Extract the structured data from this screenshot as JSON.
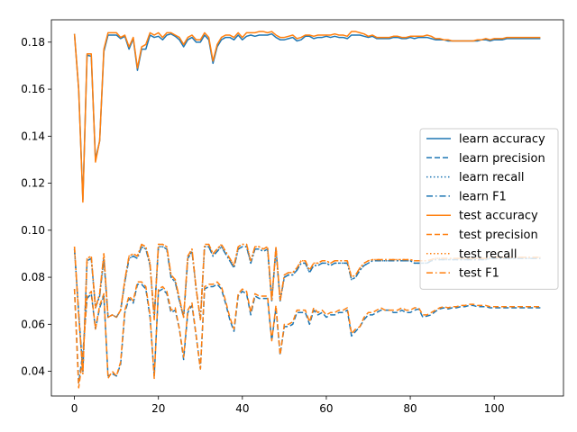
{
  "chart_data": {
    "type": "line",
    "title": "",
    "xlabel": "",
    "ylabel": "",
    "xlim": [
      -5.5,
      116.5
    ],
    "ylim": [
      0.0295,
      0.1895
    ],
    "xticks": [
      0,
      20,
      40,
      60,
      80,
      100
    ],
    "yticks": [
      0.04,
      0.06,
      0.08,
      0.1,
      0.12,
      0.14,
      0.16,
      0.18
    ],
    "ytick_labels": [
      "0.04",
      "0.06",
      "0.08",
      "0.10",
      "0.12",
      "0.14",
      "0.16",
      "0.18"
    ],
    "grid": false,
    "legend_position": "center-right",
    "colors": {
      "learn": "#1f77b4",
      "test": "#ff7f0e"
    },
    "x": [
      0,
      1,
      2,
      3,
      4,
      5,
      6,
      7,
      8,
      9,
      10,
      11,
      12,
      13,
      14,
      15,
      16,
      17,
      18,
      19,
      20,
      21,
      22,
      23,
      24,
      25,
      26,
      27,
      28,
      29,
      30,
      31,
      32,
      33,
      34,
      35,
      36,
      37,
      38,
      39,
      40,
      41,
      42,
      43,
      44,
      45,
      46,
      47,
      48,
      49,
      50,
      51,
      52,
      53,
      54,
      55,
      56,
      57,
      58,
      59,
      60,
      61,
      62,
      63,
      64,
      65,
      66,
      67,
      68,
      69,
      70,
      71,
      72,
      73,
      74,
      75,
      76,
      77,
      78,
      79,
      80,
      81,
      82,
      83,
      84,
      85,
      86,
      87,
      88,
      89,
      90,
      91,
      92,
      93,
      94,
      95,
      96,
      97,
      98,
      99,
      100,
      101,
      102,
      103,
      104,
      105,
      106,
      107,
      108,
      109,
      110,
      111
    ],
    "series": [
      {
        "name": "learn accuracy",
        "style": "solid",
        "color": "learn",
        "values": [
          0.1835,
          0.16,
          0.113,
          0.1745,
          0.174,
          0.13,
          0.138,
          0.176,
          0.183,
          0.183,
          0.183,
          0.1815,
          0.1825,
          0.177,
          0.1815,
          0.168,
          0.177,
          0.177,
          0.183,
          0.182,
          0.1825,
          0.181,
          0.183,
          0.1835,
          0.1825,
          0.181,
          0.178,
          0.181,
          0.182,
          0.18,
          0.18,
          0.183,
          0.181,
          0.171,
          0.178,
          0.181,
          0.182,
          0.182,
          0.181,
          0.183,
          0.181,
          0.1825,
          0.183,
          0.1825,
          0.183,
          0.183,
          0.183,
          0.1835,
          0.182,
          0.181,
          0.181,
          0.1815,
          0.182,
          0.1805,
          0.181,
          0.1825,
          0.1825,
          0.1815,
          0.182,
          0.182,
          0.1825,
          0.182,
          0.1825,
          0.182,
          0.182,
          0.1815,
          0.183,
          0.183,
          0.183,
          0.1825,
          0.182,
          0.1825,
          0.1815,
          0.1815,
          0.1815,
          0.1815,
          0.182,
          0.182,
          0.1815,
          0.1815,
          0.182,
          0.1815,
          0.182,
          0.182,
          0.182,
          0.1815,
          0.181,
          0.181,
          0.181,
          0.1805,
          0.1805,
          0.1805,
          0.1805,
          0.1805,
          0.1805,
          0.1805,
          0.1805,
          0.181,
          0.181,
          0.1805,
          0.181,
          0.181,
          0.181,
          0.1815,
          0.1815,
          0.1815,
          0.1815,
          0.1815,
          0.1815,
          0.1815,
          0.1815,
          0.1815
        ]
      },
      {
        "name": "learn precision",
        "style": "dashed",
        "color": "learn",
        "values": [
          0.075,
          0.035,
          0.048,
          0.071,
          0.073,
          0.058,
          0.067,
          0.072,
          0.038,
          0.039,
          0.038,
          0.043,
          0.065,
          0.071,
          0.069,
          0.077,
          0.077,
          0.075,
          0.063,
          0.038,
          0.074,
          0.075,
          0.073,
          0.065,
          0.066,
          0.058,
          0.045,
          0.065,
          0.068,
          0.055,
          0.041,
          0.075,
          0.076,
          0.076,
          0.077,
          0.075,
          0.069,
          0.062,
          0.057,
          0.072,
          0.074,
          0.073,
          0.064,
          0.072,
          0.071,
          0.071,
          0.071,
          0.053,
          0.067,
          0.047,
          0.059,
          0.059,
          0.06,
          0.065,
          0.065,
          0.065,
          0.06,
          0.066,
          0.064,
          0.065,
          0.063,
          0.064,
          0.064,
          0.065,
          0.065,
          0.066,
          0.055,
          0.057,
          0.059,
          0.062,
          0.064,
          0.064,
          0.065,
          0.066,
          0.066,
          0.066,
          0.065,
          0.065,
          0.066,
          0.065,
          0.065,
          0.066,
          0.0665,
          0.063,
          0.0635,
          0.064,
          0.0655,
          0.0665,
          0.067,
          0.0665,
          0.067,
          0.067,
          0.0675,
          0.0675,
          0.068,
          0.068,
          0.0675,
          0.0675,
          0.0675,
          0.067,
          0.067,
          0.067,
          0.067,
          0.067,
          0.067,
          0.067,
          0.067,
          0.067,
          0.067,
          0.067,
          0.067,
          0.067
        ]
      },
      {
        "name": "learn recall",
        "style": "dotted",
        "color": "learn",
        "values": [
          0.092,
          0.065,
          0.04,
          0.087,
          0.088,
          0.067,
          0.072,
          0.088,
          0.063,
          0.064,
          0.063,
          0.066,
          0.078,
          0.088,
          0.089,
          0.088,
          0.093,
          0.092,
          0.085,
          0.063,
          0.093,
          0.093,
          0.092,
          0.08,
          0.078,
          0.07,
          0.063,
          0.088,
          0.091,
          0.075,
          0.062,
          0.093,
          0.093,
          0.089,
          0.091,
          0.093,
          0.09,
          0.087,
          0.084,
          0.092,
          0.093,
          0.093,
          0.086,
          0.092,
          0.092,
          0.091,
          0.092,
          0.07,
          0.092,
          0.07,
          0.08,
          0.081,
          0.081,
          0.083,
          0.086,
          0.086,
          0.082,
          0.085,
          0.085,
          0.086,
          0.086,
          0.085,
          0.086,
          0.086,
          0.086,
          0.086,
          0.079,
          0.08,
          0.083,
          0.085,
          0.086,
          0.087,
          0.087,
          0.087,
          0.087,
          0.087,
          0.087,
          0.087,
          0.087,
          0.087,
          0.087,
          0.086,
          0.086,
          0.086,
          0.086,
          0.087,
          0.0875,
          0.0875,
          0.0875,
          0.0875,
          0.0875,
          0.0875,
          0.0875,
          0.0875,
          0.0875,
          0.0875,
          0.0875,
          0.0875,
          0.0875,
          0.088,
          0.088,
          0.088,
          0.088,
          0.088,
          0.088,
          0.088,
          0.088,
          0.088,
          0.088,
          0.088,
          0.088,
          0.088
        ]
      },
      {
        "name": "learn F1",
        "style": "dashdot",
        "color": "learn",
        "values": [
          0.092,
          0.065,
          0.04,
          0.087,
          0.088,
          0.067,
          0.072,
          0.088,
          0.063,
          0.064,
          0.063,
          0.066,
          0.078,
          0.088,
          0.089,
          0.088,
          0.093,
          0.092,
          0.085,
          0.063,
          0.093,
          0.093,
          0.092,
          0.08,
          0.078,
          0.07,
          0.063,
          0.088,
          0.091,
          0.075,
          0.062,
          0.093,
          0.093,
          0.089,
          0.091,
          0.093,
          0.09,
          0.087,
          0.084,
          0.092,
          0.093,
          0.093,
          0.086,
          0.092,
          0.092,
          0.091,
          0.092,
          0.07,
          0.092,
          0.07,
          0.08,
          0.081,
          0.081,
          0.083,
          0.086,
          0.086,
          0.082,
          0.085,
          0.085,
          0.086,
          0.086,
          0.085,
          0.086,
          0.086,
          0.086,
          0.086,
          0.079,
          0.08,
          0.083,
          0.085,
          0.086,
          0.087,
          0.087,
          0.087,
          0.087,
          0.087,
          0.087,
          0.087,
          0.087,
          0.087,
          0.087,
          0.086,
          0.086,
          0.086,
          0.086,
          0.087,
          0.0875,
          0.0875,
          0.0875,
          0.0875,
          0.0875,
          0.0875,
          0.0875,
          0.0875,
          0.0875,
          0.0875,
          0.0875,
          0.0875,
          0.0875,
          0.088,
          0.088,
          0.088,
          0.088,
          0.088,
          0.088,
          0.088,
          0.088,
          0.088,
          0.088,
          0.088,
          0.088,
          0.088
        ]
      },
      {
        "name": "test accuracy",
        "style": "solid",
        "color": "test",
        "values": [
          0.1835,
          0.16,
          0.112,
          0.175,
          0.175,
          0.129,
          0.138,
          0.177,
          0.184,
          0.184,
          0.184,
          0.182,
          0.183,
          0.178,
          0.182,
          0.169,
          0.178,
          0.179,
          0.184,
          0.183,
          0.184,
          0.182,
          0.184,
          0.184,
          0.183,
          0.182,
          0.179,
          0.182,
          0.183,
          0.181,
          0.181,
          0.184,
          0.182,
          0.172,
          0.179,
          0.182,
          0.183,
          0.183,
          0.182,
          0.184,
          0.182,
          0.184,
          0.184,
          0.184,
          0.1845,
          0.1845,
          0.184,
          0.1845,
          0.183,
          0.182,
          0.182,
          0.1825,
          0.183,
          0.1815,
          0.182,
          0.183,
          0.183,
          0.1825,
          0.183,
          0.183,
          0.183,
          0.183,
          0.1835,
          0.183,
          0.183,
          0.1825,
          0.1845,
          0.1845,
          0.184,
          0.1835,
          0.1825,
          0.183,
          0.182,
          0.182,
          0.182,
          0.182,
          0.1825,
          0.1825,
          0.182,
          0.182,
          0.1825,
          0.1825,
          0.1825,
          0.1825,
          0.183,
          0.1825,
          0.1815,
          0.1815,
          0.181,
          0.181,
          0.1805,
          0.1805,
          0.1805,
          0.1805,
          0.1805,
          0.1805,
          0.181,
          0.181,
          0.1815,
          0.181,
          0.1815,
          0.1815,
          0.1815,
          0.182,
          0.182,
          0.182,
          0.182,
          0.182,
          0.182,
          0.182,
          0.182,
          0.182
        ]
      },
      {
        "name": "test precision",
        "style": "dashed",
        "color": "test",
        "values": [
          0.075,
          0.033,
          0.046,
          0.072,
          0.074,
          0.058,
          0.068,
          0.073,
          0.037,
          0.04,
          0.038,
          0.044,
          0.066,
          0.072,
          0.07,
          0.078,
          0.078,
          0.076,
          0.064,
          0.037,
          0.075,
          0.076,
          0.074,
          0.066,
          0.067,
          0.058,
          0.046,
          0.066,
          0.069,
          0.055,
          0.041,
          0.076,
          0.077,
          0.077,
          0.078,
          0.076,
          0.07,
          0.063,
          0.058,
          0.073,
          0.075,
          0.074,
          0.065,
          0.073,
          0.072,
          0.072,
          0.072,
          0.053,
          0.068,
          0.047,
          0.06,
          0.06,
          0.061,
          0.066,
          0.066,
          0.066,
          0.061,
          0.067,
          0.065,
          0.066,
          0.064,
          0.065,
          0.065,
          0.066,
          0.066,
          0.067,
          0.056,
          0.058,
          0.059,
          0.063,
          0.065,
          0.065,
          0.066,
          0.067,
          0.066,
          0.066,
          0.066,
          0.066,
          0.067,
          0.066,
          0.066,
          0.067,
          0.067,
          0.064,
          0.064,
          0.065,
          0.066,
          0.067,
          0.0675,
          0.067,
          0.0675,
          0.0675,
          0.068,
          0.068,
          0.0685,
          0.0685,
          0.068,
          0.068,
          0.068,
          0.0675,
          0.0675,
          0.0675,
          0.0675,
          0.0675,
          0.0675,
          0.0675,
          0.0675,
          0.0675,
          0.0675,
          0.0675,
          0.0675,
          0.0675
        ]
      },
      {
        "name": "test recall",
        "style": "dotted",
        "color": "test",
        "values": [
          0.093,
          0.064,
          0.039,
          0.088,
          0.089,
          0.067,
          0.073,
          0.09,
          0.063,
          0.064,
          0.063,
          0.066,
          0.079,
          0.089,
          0.09,
          0.089,
          0.094,
          0.093,
          0.086,
          0.062,
          0.094,
          0.094,
          0.093,
          0.081,
          0.079,
          0.071,
          0.063,
          0.089,
          0.092,
          0.075,
          0.062,
          0.094,
          0.094,
          0.09,
          0.092,
          0.094,
          0.091,
          0.088,
          0.085,
          0.093,
          0.094,
          0.094,
          0.087,
          0.093,
          0.093,
          0.092,
          0.093,
          0.07,
          0.093,
          0.07,
          0.081,
          0.082,
          0.082,
          0.084,
          0.087,
          0.087,
          0.083,
          0.086,
          0.086,
          0.087,
          0.087,
          0.086,
          0.087,
          0.087,
          0.087,
          0.087,
          0.08,
          0.081,
          0.084,
          0.086,
          0.087,
          0.0875,
          0.0875,
          0.0875,
          0.0875,
          0.0875,
          0.0875,
          0.0875,
          0.0875,
          0.0875,
          0.0875,
          0.087,
          0.087,
          0.087,
          0.087,
          0.0875,
          0.088,
          0.088,
          0.088,
          0.088,
          0.088,
          0.088,
          0.088,
          0.088,
          0.088,
          0.088,
          0.088,
          0.088,
          0.088,
          0.0885,
          0.0885,
          0.0885,
          0.0885,
          0.0885,
          0.0885,
          0.0885,
          0.0885,
          0.0885,
          0.0885,
          0.0885,
          0.0885,
          0.0885
        ]
      },
      {
        "name": "test F1",
        "style": "dashdot",
        "color": "test",
        "values": [
          0.093,
          0.064,
          0.039,
          0.088,
          0.089,
          0.067,
          0.073,
          0.09,
          0.063,
          0.064,
          0.063,
          0.066,
          0.079,
          0.089,
          0.09,
          0.089,
          0.094,
          0.093,
          0.086,
          0.062,
          0.094,
          0.094,
          0.093,
          0.081,
          0.079,
          0.071,
          0.063,
          0.089,
          0.092,
          0.075,
          0.062,
          0.094,
          0.094,
          0.09,
          0.092,
          0.094,
          0.091,
          0.088,
          0.085,
          0.093,
          0.094,
          0.094,
          0.087,
          0.093,
          0.093,
          0.092,
          0.093,
          0.07,
          0.093,
          0.07,
          0.081,
          0.082,
          0.082,
          0.084,
          0.087,
          0.087,
          0.083,
          0.086,
          0.086,
          0.087,
          0.087,
          0.086,
          0.087,
          0.087,
          0.087,
          0.087,
          0.08,
          0.081,
          0.084,
          0.086,
          0.087,
          0.0875,
          0.0875,
          0.0875,
          0.0875,
          0.0875,
          0.0875,
          0.0875,
          0.0875,
          0.0875,
          0.0875,
          0.087,
          0.087,
          0.087,
          0.087,
          0.0875,
          0.088,
          0.088,
          0.088,
          0.088,
          0.088,
          0.088,
          0.088,
          0.088,
          0.088,
          0.088,
          0.088,
          0.088,
          0.088,
          0.0885,
          0.0885,
          0.0885,
          0.0885,
          0.0885,
          0.0885,
          0.0885,
          0.0885,
          0.0885,
          0.0885,
          0.0885,
          0.0885,
          0.0885
        ]
      }
    ]
  }
}
